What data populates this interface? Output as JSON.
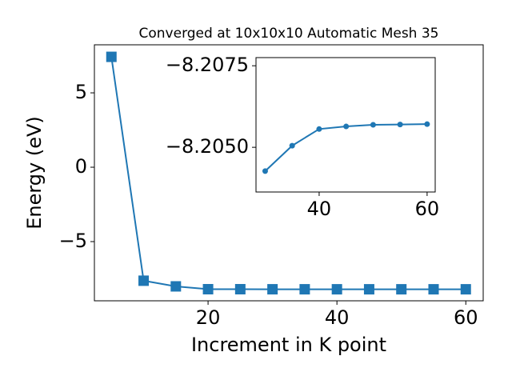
{
  "chart_data": [
    {
      "type": "line",
      "title": "Converged at 10x10x10 Automatic Mesh 35",
      "x_label": "Increment in K point",
      "y_label": "Energy (eV)",
      "x": [
        5,
        10,
        15,
        20,
        25,
        30,
        35,
        40,
        45,
        50,
        55,
        60
      ],
      "series": [
        {
          "color": "#1f77b4",
          "marker": "square",
          "values": [
            7.42,
            -7.63,
            -8.01,
            -8.2,
            -8.2,
            -8.20427,
            -8.20505,
            -8.20556,
            -8.20564,
            -8.20569,
            -8.2057,
            -8.20571
          ]
        }
      ],
      "xlim": [
        2.36,
        62.7
      ],
      "ylim": [
        -8.98,
        8.23
      ],
      "xticks": [
        20,
        40,
        60
      ],
      "yticks": [
        {
          "value": -5,
          "label": "−5"
        },
        0,
        5
      ]
    },
    {
      "type": "line",
      "x": [
        30,
        35,
        40,
        45,
        50,
        55,
        60
      ],
      "series": [
        {
          "color": "#1f77b4",
          "marker": "circle",
          "values": [
            -8.20427,
            -8.20505,
            -8.20556,
            -8.20564,
            -8.20569,
            -8.2057,
            -8.20571
          ]
        }
      ],
      "xlim": [
        28.3,
        61.5
      ],
      "ylim": [
        -8.20363,
        -8.20775
      ],
      "xticks": [
        40,
        60
      ],
      "yticks": [
        {
          "value": -8.2075,
          "label": "−8.2075"
        },
        {
          "value": -8.205,
          "label": "−8.2050"
        }
      ]
    }
  ]
}
